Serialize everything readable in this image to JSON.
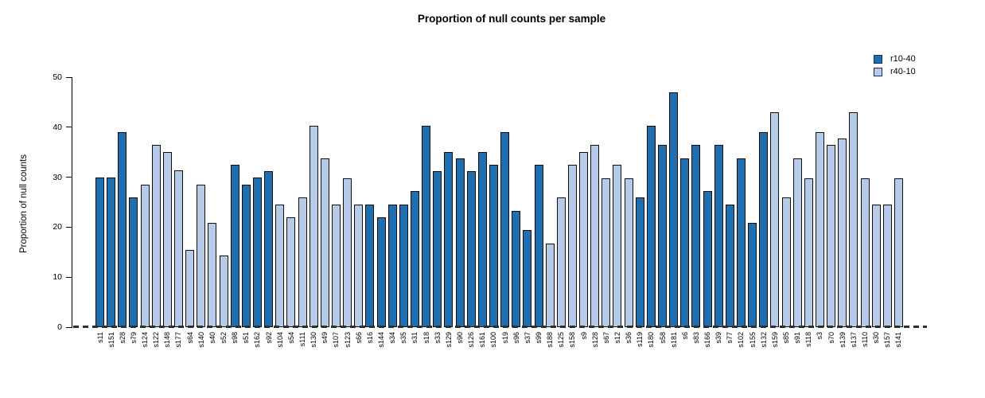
{
  "title": "Proportion of null counts per sample",
  "legend": [
    {
      "label": "r10-40",
      "color": "#1f6fb0"
    },
    {
      "label": "r40-10",
      "color": "#b6cbe8"
    }
  ],
  "colors": {
    "series_dark": "#1f6fb0",
    "series_light": "#b6cbe8",
    "bar_border": "#0d0d0d",
    "axis": "#000000",
    "zero_line": "#2e2e2e"
  },
  "chart_data": {
    "type": "bar",
    "title": "Proportion of null counts per sample",
    "xlabel": "",
    "ylabel": "Proportion of null counts",
    "ylim": [
      0,
      50
    ],
    "yticks": [
      0,
      10,
      20,
      30,
      40,
      50
    ],
    "grid": false,
    "legend_position": "top-right",
    "zero_line_style": "dashed",
    "series_colors": {
      "r10-40": "#1f6fb0",
      "r40-10": "#b6cbe8"
    },
    "bars": [
      {
        "label": "s11",
        "value": 29.9,
        "series": "r10-40"
      },
      {
        "label": "s151",
        "value": 29.9,
        "series": "r10-40"
      },
      {
        "label": "s28",
        "value": 39.1,
        "series": "r10-40"
      },
      {
        "label": "s79",
        "value": 26.0,
        "series": "r10-40"
      },
      {
        "label": "s124",
        "value": 28.5,
        "series": "r40-10"
      },
      {
        "label": "s122",
        "value": 36.5,
        "series": "r40-10"
      },
      {
        "label": "s148",
        "value": 35.1,
        "series": "r40-10"
      },
      {
        "label": "s177",
        "value": 31.3,
        "series": "r40-10"
      },
      {
        "label": "s64",
        "value": 15.5,
        "series": "r40-10"
      },
      {
        "label": "s140",
        "value": 28.5,
        "series": "r40-10"
      },
      {
        "label": "s40",
        "value": 20.8,
        "series": "r40-10"
      },
      {
        "label": "s52",
        "value": 14.4,
        "series": "r40-10"
      },
      {
        "label": "s98",
        "value": 32.5,
        "series": "r10-40"
      },
      {
        "label": "s51",
        "value": 28.5,
        "series": "r10-40"
      },
      {
        "label": "s162",
        "value": 29.9,
        "series": "r10-40"
      },
      {
        "label": "s92",
        "value": 31.2,
        "series": "r10-40"
      },
      {
        "label": "s104",
        "value": 24.5,
        "series": "r40-10"
      },
      {
        "label": "s54",
        "value": 22.0,
        "series": "r40-10"
      },
      {
        "label": "s111",
        "value": 26.0,
        "series": "r40-10"
      },
      {
        "label": "s130",
        "value": 40.3,
        "series": "r40-10"
      },
      {
        "label": "s49",
        "value": 33.8,
        "series": "r40-10"
      },
      {
        "label": "s107",
        "value": 24.5,
        "series": "r40-10"
      },
      {
        "label": "s123",
        "value": 29.8,
        "series": "r40-10"
      },
      {
        "label": "s66",
        "value": 24.5,
        "series": "r40-10"
      },
      {
        "label": "s16",
        "value": 24.5,
        "series": "r10-40"
      },
      {
        "label": "s144",
        "value": 22.0,
        "series": "r10-40"
      },
      {
        "label": "s34",
        "value": 24.5,
        "series": "r10-40"
      },
      {
        "label": "s35",
        "value": 24.5,
        "series": "r10-40"
      },
      {
        "label": "s31",
        "value": 27.3,
        "series": "r10-40"
      },
      {
        "label": "s18",
        "value": 40.3,
        "series": "r10-40"
      },
      {
        "label": "s33",
        "value": 31.2,
        "series": "r10-40"
      },
      {
        "label": "s129",
        "value": 35.0,
        "series": "r10-40"
      },
      {
        "label": "s90",
        "value": 33.8,
        "series": "r10-40"
      },
      {
        "label": "s126",
        "value": 31.2,
        "series": "r10-40"
      },
      {
        "label": "s161",
        "value": 35.0,
        "series": "r10-40"
      },
      {
        "label": "s100",
        "value": 32.5,
        "series": "r10-40"
      },
      {
        "label": "s19",
        "value": 39.1,
        "series": "r10-40"
      },
      {
        "label": "s96",
        "value": 23.3,
        "series": "r10-40"
      },
      {
        "label": "s37",
        "value": 19.4,
        "series": "r10-40"
      },
      {
        "label": "s99",
        "value": 32.5,
        "series": "r10-40"
      },
      {
        "label": "s188",
        "value": 16.7,
        "series": "r40-10"
      },
      {
        "label": "s125",
        "value": 26.0,
        "series": "r40-10"
      },
      {
        "label": "s158",
        "value": 32.5,
        "series": "r40-10"
      },
      {
        "label": "s9",
        "value": 35.1,
        "series": "r40-10"
      },
      {
        "label": "s128",
        "value": 36.5,
        "series": "r40-10"
      },
      {
        "label": "s67",
        "value": 29.8,
        "series": "r40-10"
      },
      {
        "label": "s12",
        "value": 32.5,
        "series": "r40-10"
      },
      {
        "label": "s36",
        "value": 29.8,
        "series": "r40-10"
      },
      {
        "label": "s119",
        "value": 26.0,
        "series": "r10-40"
      },
      {
        "label": "s180",
        "value": 40.3,
        "series": "r10-40"
      },
      {
        "label": "s58",
        "value": 36.5,
        "series": "r10-40"
      },
      {
        "label": "s181",
        "value": 47.0,
        "series": "r10-40"
      },
      {
        "label": "s6",
        "value": 33.8,
        "series": "r10-40"
      },
      {
        "label": "s83",
        "value": 36.5,
        "series": "r10-40"
      },
      {
        "label": "s166",
        "value": 27.3,
        "series": "r10-40"
      },
      {
        "label": "s39",
        "value": 36.5,
        "series": "r10-40"
      },
      {
        "label": "s77",
        "value": 24.6,
        "series": "r10-40"
      },
      {
        "label": "s102",
        "value": 33.8,
        "series": "r10-40"
      },
      {
        "label": "s155",
        "value": 20.8,
        "series": "r10-40"
      },
      {
        "label": "s132",
        "value": 39.1,
        "series": "r10-40"
      },
      {
        "label": "s159",
        "value": 43.0,
        "series": "r40-10"
      },
      {
        "label": "s85",
        "value": 26.0,
        "series": "r40-10"
      },
      {
        "label": "s91",
        "value": 33.8,
        "series": "r40-10"
      },
      {
        "label": "s118",
        "value": 29.8,
        "series": "r40-10"
      },
      {
        "label": "s3",
        "value": 39.1,
        "series": "r40-10"
      },
      {
        "label": "s70",
        "value": 36.5,
        "series": "r40-10"
      },
      {
        "label": "s139",
        "value": 37.8,
        "series": "r40-10"
      },
      {
        "label": "s137",
        "value": 43.0,
        "series": "r40-10"
      },
      {
        "label": "s110",
        "value": 29.8,
        "series": "r40-10"
      },
      {
        "label": "s30",
        "value": 24.6,
        "series": "r40-10"
      },
      {
        "label": "s157",
        "value": 24.6,
        "series": "r40-10"
      },
      {
        "label": "s141",
        "value": 29.8,
        "series": "r40-10"
      }
    ]
  }
}
